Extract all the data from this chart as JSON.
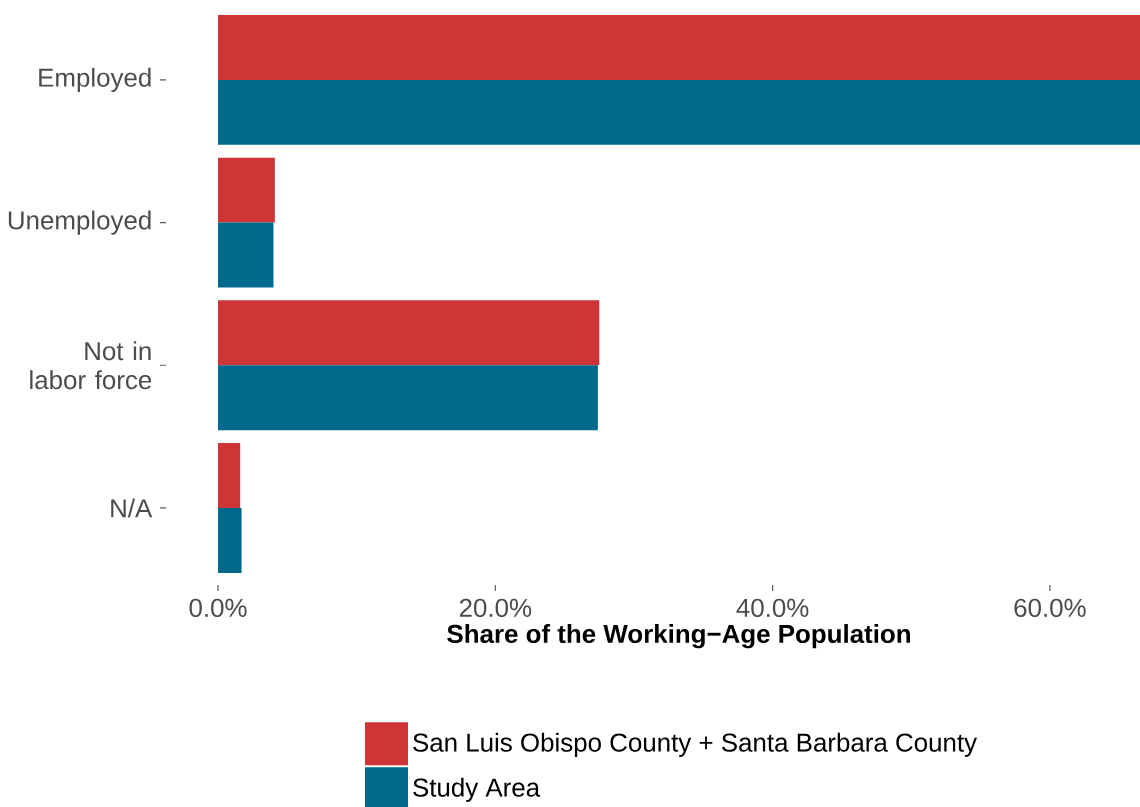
{
  "chart_data": {
    "type": "bar",
    "orientation": "horizontal",
    "xlabel": "Share of the Working−Age Population",
    "categories": [
      "Employed",
      "Unemployed",
      "Not in labor force",
      "N/A"
    ],
    "series": [
      {
        "name": "San Luis Obispo County + Santa Barbara County",
        "color": "#cf3537",
        "values": [
          66.5,
          4.1,
          27.5,
          1.6
        ]
      },
      {
        "name": "Study Area",
        "color": "#00698c",
        "values": [
          66.5,
          4.0,
          27.4,
          1.7
        ]
      }
    ],
    "xlim": [
      0,
      66.5
    ],
    "xticks": [
      {
        "value": 0,
        "label": "0.0%"
      },
      {
        "value": 20,
        "label": "20.0%"
      },
      {
        "value": 40,
        "label": "40.0%"
      },
      {
        "value": 60,
        "label": "60.0%"
      }
    ],
    "legend": "bottom"
  }
}
